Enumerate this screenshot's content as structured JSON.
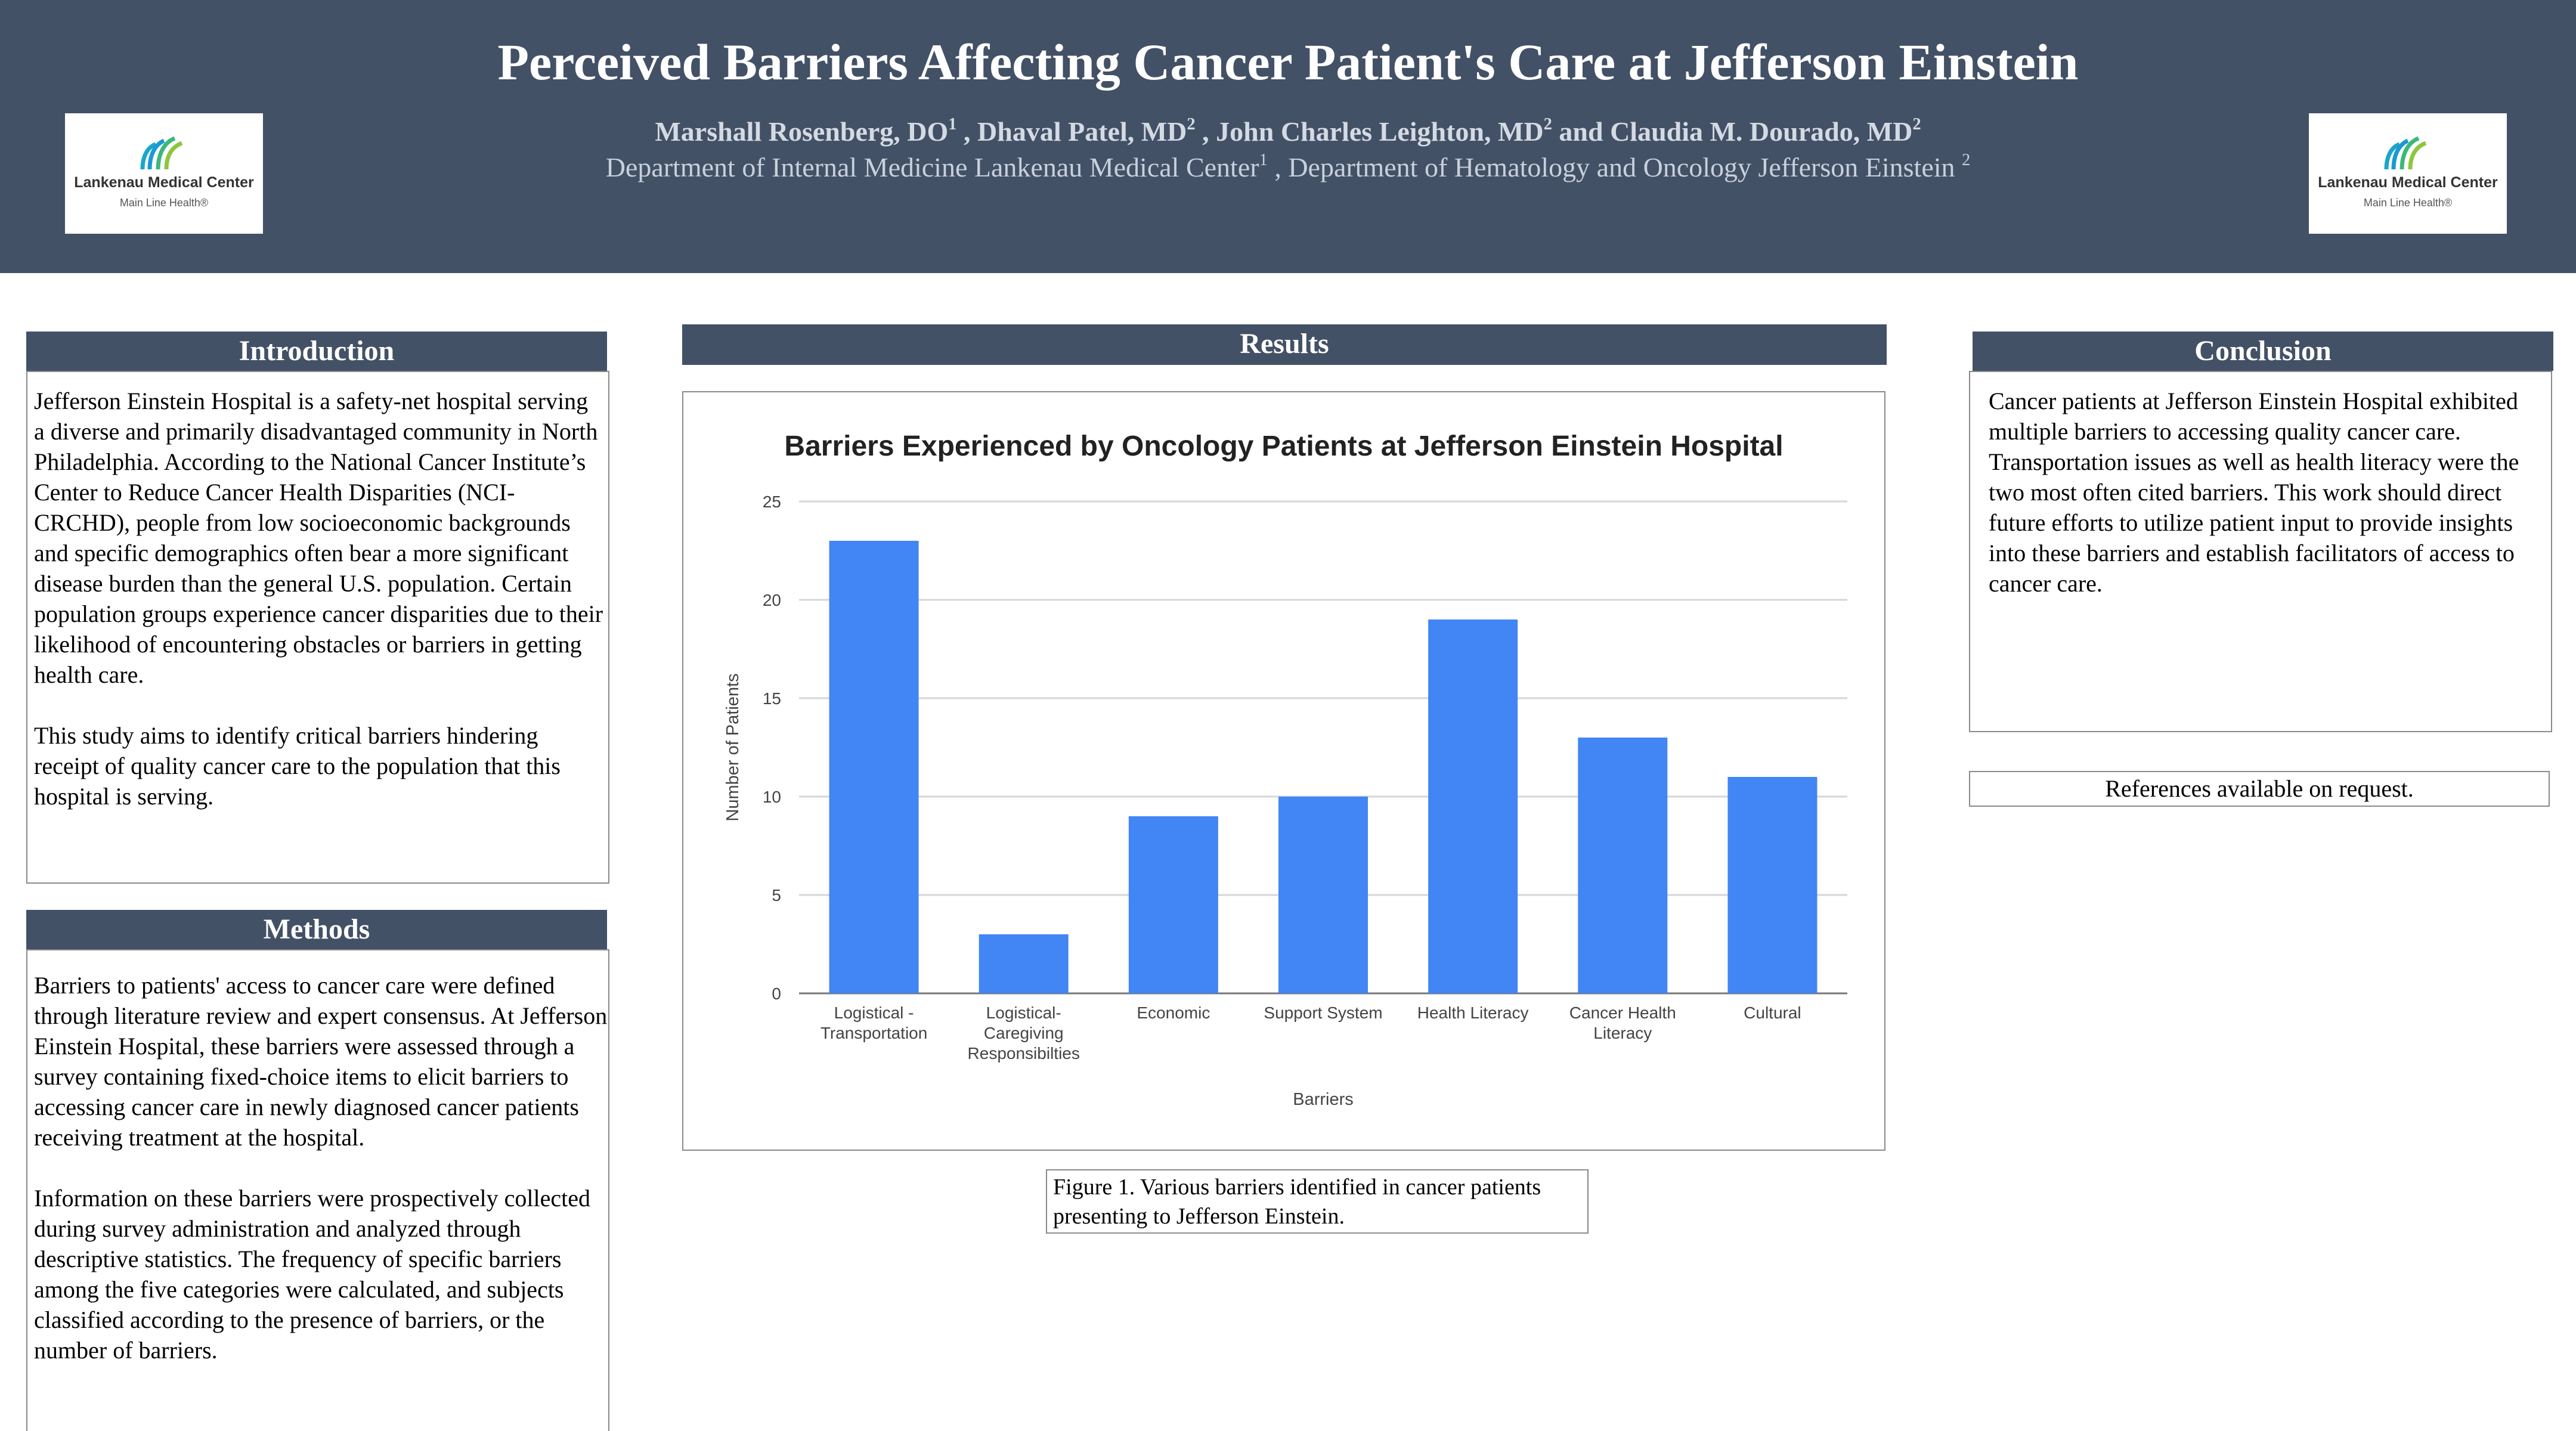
{
  "header": {
    "title": "Perceived Barriers Affecting Cancer Patient's Care at Jefferson Einstein",
    "authors": {
      "a1": "Marshall Rosenberg, DO",
      "a1_sup": "1",
      "a2": " , Dhaval Patel, MD",
      "a2_sup": "2",
      "a3": " ,  John Charles Leighton, MD",
      "a3_sup": "2",
      "a4": " and Claudia M. Dourado, MD",
      "a4_sup": "2"
    },
    "affiliation": {
      "d1": "Department of Internal Medicine Lankenau Medical Center",
      "d1_sup": "1",
      "d2": " , Department of Hematology and Oncology Jefferson Einstein ",
      "d2_sup": "2"
    },
    "logo": {
      "name": "Lankenau Medical Center",
      "sub": "Main Line Health®"
    }
  },
  "introduction": {
    "heading": "Introduction",
    "p1": "Jefferson Einstein Hospital is a safety-net hospital serving a diverse and primarily disadvantaged community in North Philadelphia. According to the National Cancer Institute’s Center to Reduce Cancer Health Disparities (NCI-CRCHD), people from low socioeconomic backgrounds and specific demographics often bear a more significant disease burden than the general U.S. population. Certain population groups experience cancer disparities due to their likelihood of encountering obstacles or barriers in getting health care.",
    "p2": "This study aims to identify critical barriers hindering receipt of quality cancer care to the population that this hospital is serving."
  },
  "methods": {
    "heading": "Methods",
    "p1": "Barriers to patients' access to cancer care were defined through literature review and expert consensus. At Jefferson Einstein Hospital, these barriers were assessed through a survey containing fixed-choice items to elicit barriers to accessing cancer care in newly diagnosed cancer patients receiving treatment at the hospital.",
    "p2": "Information on these barriers were prospectively collected during survey administration and analyzed through descriptive statistics. The frequency of specific barriers among the five categories were calculated, and subjects classified according to the presence of barriers, or the number of barriers."
  },
  "results": {
    "heading": "Results",
    "caption": "Figure 1. Various barriers identified in cancer patients presenting to Jefferson Einstein."
  },
  "conclusion": {
    "heading": "Conclusion",
    "p1": "Cancer patients at Jefferson Einstein Hospital exhibited multiple barriers to accessing quality cancer care. Transportation issues as well as health literacy were the two most often cited barriers. This work should direct future efforts to utilize patient input to provide insights into these barriers and establish facilitators of access to cancer care."
  },
  "references": {
    "text": "References available on request."
  },
  "chart_data": {
    "type": "bar",
    "title": "Barriers Experienced by Oncology Patients at Jefferson Einstein Hospital",
    "xlabel": "Barriers",
    "ylabel": "Number of Patients",
    "categories": [
      [
        "Logistical -",
        "Transportation"
      ],
      [
        "Logistical-",
        "Caregiving",
        "Responsibilties"
      ],
      [
        "Economic"
      ],
      [
        "Support System"
      ],
      [
        "Health Literacy"
      ],
      [
        "Cancer Health",
        "Literacy"
      ],
      [
        "Cultural"
      ]
    ],
    "values": [
      23,
      3,
      9,
      10,
      19,
      13,
      11
    ],
    "yticks": [
      0,
      5,
      10,
      15,
      20,
      25
    ],
    "ylim": [
      0,
      25
    ],
    "grid": true,
    "bar_color": "#4285f4"
  }
}
